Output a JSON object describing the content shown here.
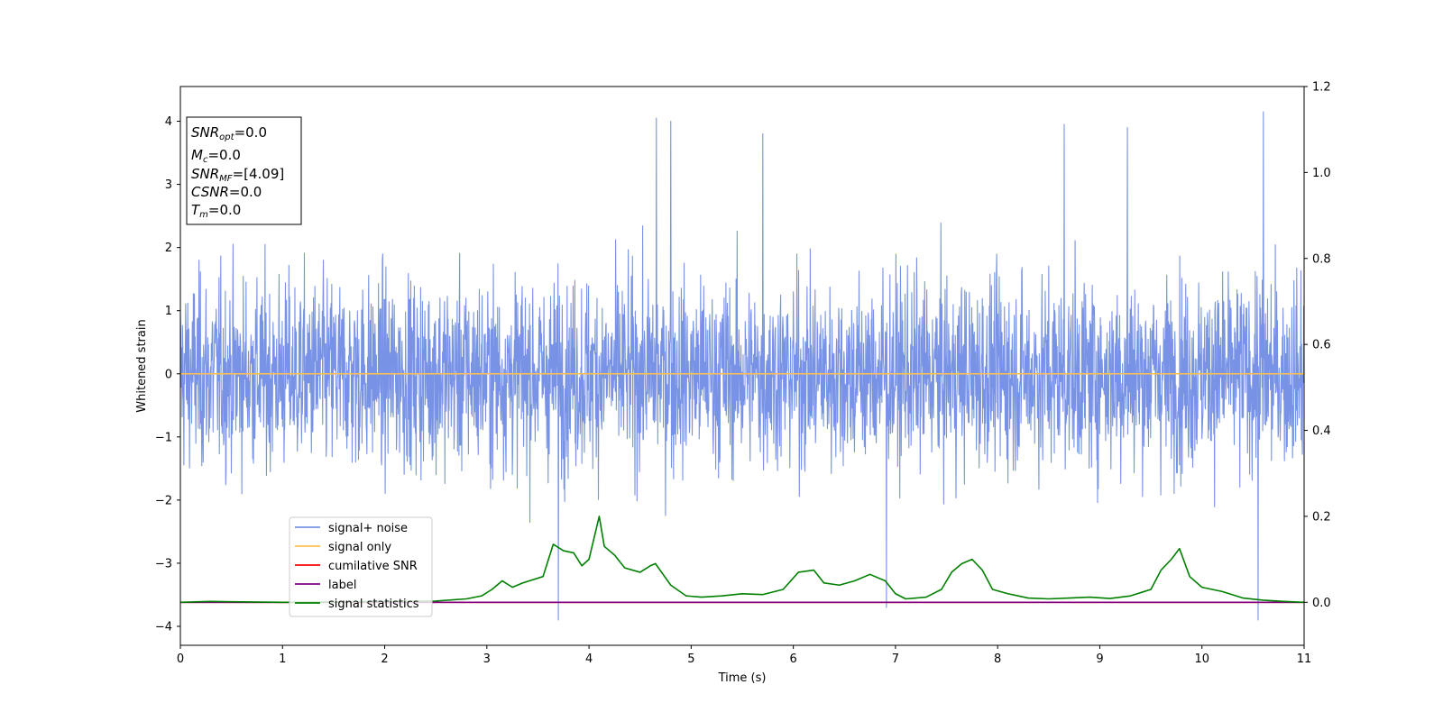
{
  "chart_data": {
    "type": "line",
    "xlabel": "Time (s)",
    "ylabel": "Whitened strain",
    "xlim": [
      0,
      11
    ],
    "ylim": [
      -4.3,
      4.55
    ],
    "y2lim": [
      -0.1,
      1.2
    ],
    "x_ticks": [
      0,
      1,
      2,
      3,
      4,
      5,
      6,
      7,
      8,
      9,
      10,
      11
    ],
    "x_tick_labels": [
      "0",
      "1",
      "2",
      "3",
      "4",
      "5",
      "6",
      "7",
      "8",
      "9",
      "10",
      "11"
    ],
    "y_ticks": [
      -4,
      -3,
      -2,
      -1,
      0,
      1,
      2,
      3,
      4
    ],
    "y_tick_labels": [
      "−4",
      "−3",
      "−2",
      "−1",
      "0",
      "1",
      "2",
      "3",
      "4"
    ],
    "y2_ticks": [
      0.0,
      0.2,
      0.4,
      0.6,
      0.8,
      1.0,
      1.2
    ],
    "y2_tick_labels": [
      "0.0",
      "0.2",
      "0.4",
      "0.6",
      "0.8",
      "1.0",
      "1.2"
    ],
    "grid": false,
    "legend_position": "lower-left",
    "info_box": {
      "line1_main": "SNR",
      "line1_sub": "opt",
      "line1_val": "=0.0",
      "line2_main": "M",
      "line2_sub": "c",
      "line2_val": "=0.0",
      "line3_main": "SNR",
      "line3_sub": "MF",
      "line3_val": "=[4.09]",
      "line4_main": "CSNR",
      "line4_val": "=0.0",
      "line5_main": "T",
      "line5_sub": "m",
      "line5_val": "=0.0"
    },
    "series": [
      {
        "name": "signal+ noise",
        "color": "#7893e6",
        "axis": "left",
        "kind": "noise",
        "envelope_typical": [
          -2.4,
          2.6
        ],
        "notable_spikes": [
          {
            "x": 3.7,
            "y": -3.9
          },
          {
            "x": 4.66,
            "y": 4.05
          },
          {
            "x": 4.8,
            "y": 4.0
          },
          {
            "x": 10.55,
            "y": -3.9
          },
          {
            "x": 10.6,
            "y": 4.15
          },
          {
            "x": 9.27,
            "y": 3.9
          },
          {
            "x": 8.65,
            "y": 3.95
          },
          {
            "x": 5.7,
            "y": 3.8
          },
          {
            "x": 6.91,
            "y": -3.7
          }
        ]
      },
      {
        "name": "signal only",
        "color": "#ffc04d",
        "axis": "left",
        "x": [
          0,
          11
        ],
        "values": [
          0,
          0
        ]
      },
      {
        "name": "cumilative SNR",
        "color": "#ff0000",
        "axis": "right",
        "x": [
          0,
          11
        ],
        "values": [
          0,
          0
        ]
      },
      {
        "name": "label",
        "color": "#800080",
        "axis": "right",
        "x": [
          0,
          11
        ],
        "values": [
          0,
          0
        ]
      },
      {
        "name": "signal statistics",
        "color": "#008000",
        "axis": "right",
        "x": [
          0,
          0.3,
          0.6,
          1.0,
          1.5,
          2.0,
          2.5,
          2.8,
          2.95,
          3.05,
          3.15,
          3.25,
          3.35,
          3.55,
          3.65,
          3.75,
          3.85,
          3.93,
          4.0,
          4.1,
          4.15,
          4.25,
          4.35,
          4.5,
          4.6,
          4.65,
          4.8,
          4.95,
          5.1,
          5.3,
          5.5,
          5.7,
          5.9,
          6.05,
          6.2,
          6.3,
          6.45,
          6.6,
          6.75,
          6.9,
          7.0,
          7.1,
          7.3,
          7.45,
          7.55,
          7.65,
          7.75,
          7.85,
          7.95,
          8.1,
          8.3,
          8.5,
          8.7,
          8.9,
          9.1,
          9.3,
          9.5,
          9.6,
          9.7,
          9.78,
          9.88,
          10.0,
          10.2,
          10.4,
          10.6,
          10.8,
          11.0
        ],
        "values": [
          0.0,
          0.002,
          0.001,
          0.0,
          0.001,
          0.002,
          0.003,
          0.008,
          0.015,
          0.03,
          0.05,
          0.035,
          0.045,
          0.06,
          0.135,
          0.12,
          0.115,
          0.085,
          0.1,
          0.2,
          0.13,
          0.11,
          0.08,
          0.07,
          0.085,
          0.09,
          0.04,
          0.015,
          0.012,
          0.015,
          0.02,
          0.018,
          0.03,
          0.07,
          0.075,
          0.045,
          0.04,
          0.05,
          0.065,
          0.05,
          0.02,
          0.008,
          0.012,
          0.03,
          0.07,
          0.09,
          0.1,
          0.075,
          0.03,
          0.02,
          0.01,
          0.008,
          0.01,
          0.012,
          0.009,
          0.015,
          0.03,
          0.075,
          0.1,
          0.125,
          0.06,
          0.035,
          0.025,
          0.01,
          0.005,
          0.002,
          0.0
        ]
      }
    ]
  }
}
